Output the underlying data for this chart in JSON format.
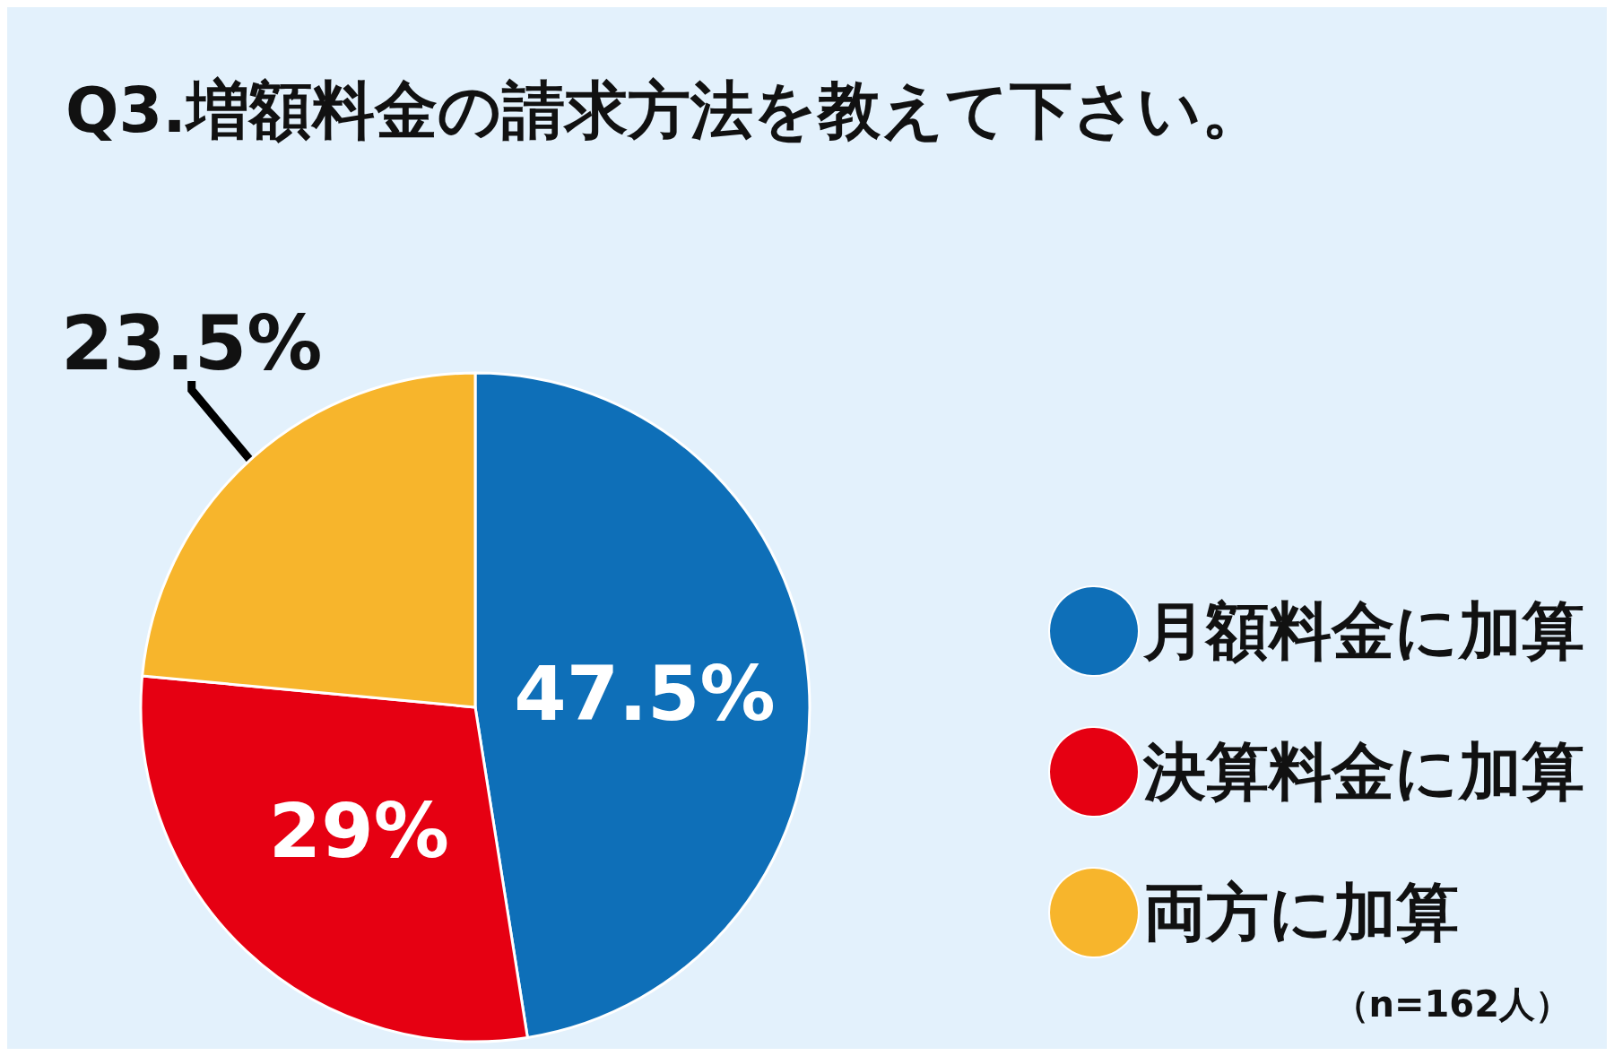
{
  "chart_data": {
    "type": "pie",
    "title": "Q3.増額料金の請求方法を教えて下さい。",
    "categories": [
      "月額料金に加算",
      "決算料金に加算",
      "両方に加算"
    ],
    "values": [
      47.5,
      29,
      23.5
    ],
    "colors": [
      "#0e6fb8",
      "#e60012",
      "#f7b52c"
    ],
    "value_labels": [
      "47.5%",
      "29%",
      "23.5%"
    ],
    "legend": "right",
    "annotations": [
      "（n=162人）"
    ]
  }
}
